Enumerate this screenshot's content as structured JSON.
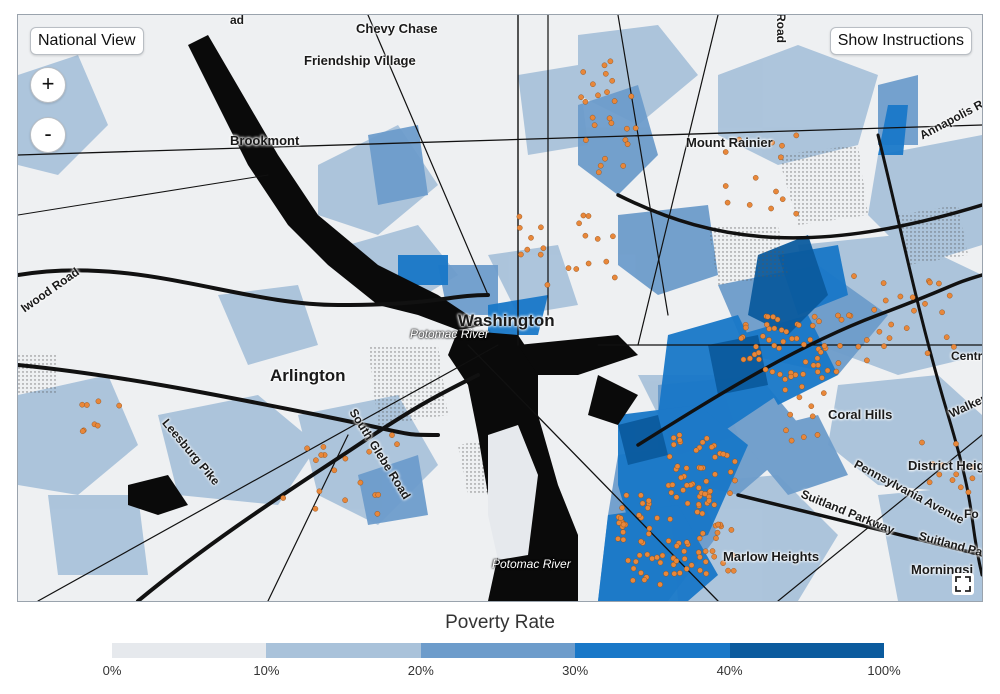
{
  "controls": {
    "national_view": "National View",
    "show_instructions": "Show Instructions",
    "zoom_in": "+",
    "zoom_out": "-"
  },
  "map": {
    "places": {
      "chevy_chase": "Chevy Chase",
      "friendship_village": "Friendship Village",
      "brookmont": "Brookmont",
      "mount_rainier": "Mount Rainier",
      "washington": "Washington",
      "arlington": "Arlington",
      "coral_hills": "Coral Hills",
      "district_heights": "District Heig",
      "marlow_heights": "Marlow Heights",
      "morningside": "Morningsi",
      "annapolis_road": "Annapolis Ro",
      "centre": "Centr",
      "walker": "Walker",
      "pennsylvania_avenue": "Pennsylvania Avenue",
      "suitland_parkway": "Suitland Parkway",
      "suitland_pa": "Suitland Pa",
      "fo": "Fo",
      "leesburg_pike": "Leesburg Pike",
      "south_glebe_road": "South Glebe Road",
      "wood_road": "Iwood Road",
      "road_top": "Road",
      "ad_top": "ad",
      "potomac_river_1": "Potomac River",
      "potomac_river_2": "Potomac River"
    },
    "colors": {
      "base": "#eef0f2",
      "class_0": "#e6e9ed",
      "class_1": "#a9c2da",
      "class_2": "#6d9ccb",
      "class_3": "#1978c8",
      "class_4": "#0b5b9e",
      "water": "#0a0a0a",
      "road": "#111111",
      "point": "#e8873a"
    }
  },
  "legend": {
    "title": "Poverty Rate",
    "ticks": [
      "0%",
      "10%",
      "20%",
      "30%",
      "40%",
      "100%"
    ],
    "colors": [
      "#e6e9ed",
      "#a9c2da",
      "#6d9ccb",
      "#1978c8",
      "#0b5b9e"
    ]
  }
}
